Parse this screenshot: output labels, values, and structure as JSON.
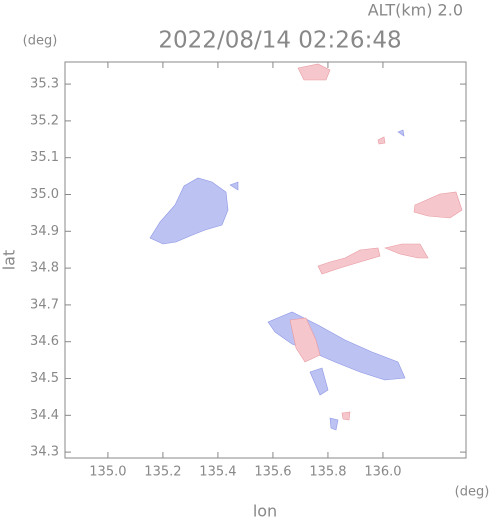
{
  "chart_data": {
    "type": "map",
    "title": "2022/08/14 02:26:48",
    "subtitle": "ALT(km) 2.0",
    "x_label": "lon",
    "y_label": "lat",
    "x_unit": "(deg)",
    "y_unit": "(deg)",
    "xlim": [
      134.844,
      136.302
    ],
    "ylim": [
      34.284,
      35.36
    ],
    "xticks": [
      {
        "value": 135,
        "label": "135.0"
      },
      135.2,
      135.4,
      135.6,
      135.8,
      {
        "value": 136,
        "label": "136.0"
      }
    ],
    "yticks": [
      34.3,
      34.4,
      34.5,
      34.6,
      34.7,
      34.8,
      34.9,
      {
        "value": 35,
        "label": "35.0"
      },
      35.1,
      35.2,
      35.3
    ]
  }
}
